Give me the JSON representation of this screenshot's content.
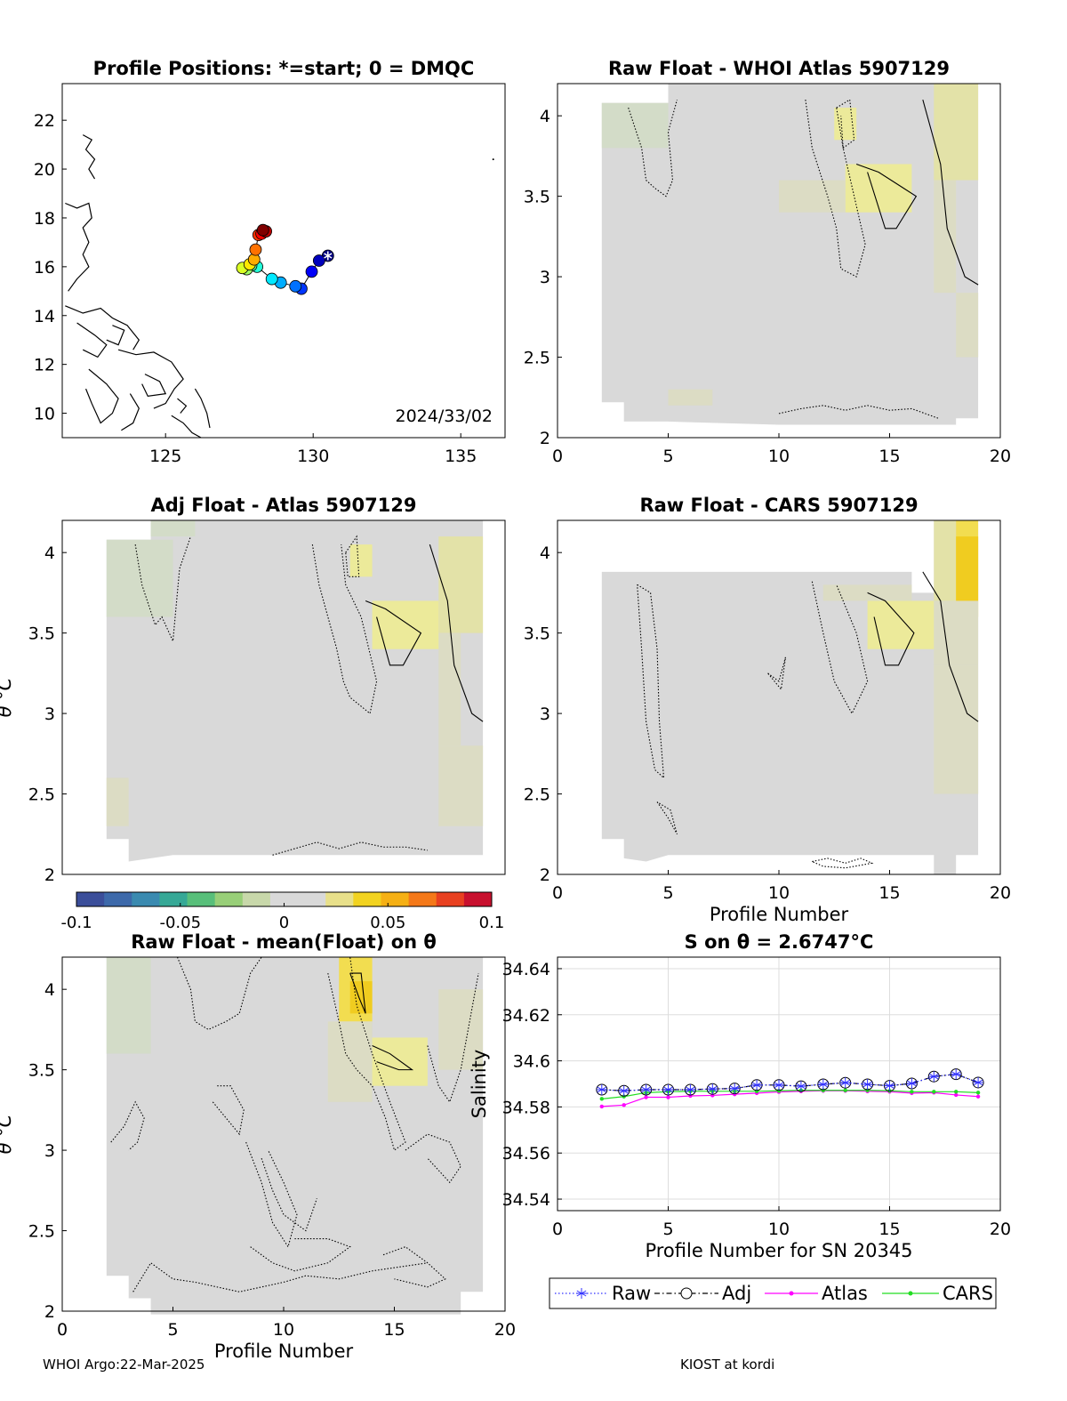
{
  "figure": {
    "footer_left": "WHOI Argo:22-Mar-2025",
    "footer_right": "KIOST at kordi"
  },
  "colors": {
    "raw": "#3030ff",
    "adj": "#000000",
    "atlas": "#ff00ff",
    "cars": "#22dd22",
    "background_field": "#d9d9d9",
    "grid": "#dddddd"
  },
  "chart_data": [
    {
      "id": "map",
      "type": "scatter",
      "title": "Profile Positions: *=start; 0 = DMQC",
      "annotation": "2024/33/02",
      "xlim": [
        121.5,
        136.5
      ],
      "ylim": [
        9,
        23.5
      ],
      "xticks": [
        "125",
        "130",
        "135"
      ],
      "yticks": [
        "10",
        "12",
        "14",
        "16",
        "18",
        "20",
        "22"
      ],
      "positions": [
        {
          "lon": 130.5,
          "lat": 16.45
        },
        {
          "lon": 130.2,
          "lat": 16.25
        },
        {
          "lon": 129.95,
          "lat": 15.8
        },
        {
          "lon": 129.6,
          "lat": 15.1
        },
        {
          "lon": 129.4,
          "lat": 15.2
        },
        {
          "lon": 128.9,
          "lat": 15.35
        },
        {
          "lon": 128.6,
          "lat": 15.5
        },
        {
          "lon": 128.1,
          "lat": 16.0
        },
        {
          "lon": 127.9,
          "lat": 16.05
        },
        {
          "lon": 127.75,
          "lat": 15.9
        },
        {
          "lon": 127.6,
          "lat": 15.95
        },
        {
          "lon": 127.85,
          "lat": 16.1
        },
        {
          "lon": 128.0,
          "lat": 16.3
        },
        {
          "lon": 128.05,
          "lat": 16.7
        },
        {
          "lon": 128.15,
          "lat": 17.3
        },
        {
          "lon": 128.25,
          "lat": 17.35
        },
        {
          "lon": 128.4,
          "lat": 17.45
        },
        {
          "lon": 128.3,
          "lat": 17.5
        }
      ]
    },
    {
      "id": "raw_whoi",
      "type": "heatmap",
      "title": "Raw Float - WHOI Atlas  5907129",
      "xlim": [
        0,
        20
      ],
      "ylim": [
        2,
        4.2
      ],
      "xticks": [
        "0",
        "5",
        "10",
        "15",
        "20"
      ],
      "yticks": [
        "2",
        "2.5",
        "3",
        "3.5",
        "4"
      ],
      "xlabel": "",
      "ylabel": ""
    },
    {
      "id": "adj_atlas",
      "type": "heatmap",
      "title": "Adj Float - Atlas  5907129",
      "xlim": [
        0,
        20
      ],
      "ylim": [
        2,
        4.2
      ],
      "xticks": [],
      "yticks": [
        "2",
        "2.5",
        "3",
        "3.5",
        "4"
      ],
      "xlabel": "",
      "ylabel": "θ °C"
    },
    {
      "id": "raw_cars",
      "type": "heatmap",
      "title": "Raw Float - CARS  5907129",
      "xlim": [
        0,
        20
      ],
      "ylim": [
        2,
        4.2
      ],
      "xticks": [
        "0",
        "5",
        "10",
        "15",
        "20"
      ],
      "yticks": [
        "2",
        "2.5",
        "3",
        "3.5",
        "4"
      ],
      "xlabel": "Profile Number",
      "ylabel": ""
    },
    {
      "id": "colorbar",
      "type": "colorbar",
      "range": [
        -0.1,
        0.1
      ],
      "ticks": [
        "-0.1",
        "-0.05",
        "0",
        "0.05",
        "0.1"
      ]
    },
    {
      "id": "raw_mean",
      "type": "heatmap",
      "title": "Raw Float - mean(Float) on θ",
      "xlim": [
        0,
        20
      ],
      "ylim": [
        2,
        4.2
      ],
      "xticks": [
        "0",
        "5",
        "10",
        "15",
        "20"
      ],
      "yticks": [
        "2",
        "2.5",
        "3",
        "3.5",
        "4"
      ],
      "xlabel": "Profile Number",
      "ylabel": "θ °C"
    },
    {
      "id": "salinity",
      "type": "line",
      "title": "S on θ = 2.6747°C",
      "xlabel": "Profile Number for SN 20345",
      "ylabel": "Salinity",
      "xlim": [
        0,
        20
      ],
      "ylim": [
        34.535,
        34.645
      ],
      "xticks": [
        "0",
        "5",
        "10",
        "15",
        "20"
      ],
      "yticks": [
        "34.54",
        "34.56",
        "34.58",
        "34.6",
        "34.62",
        "34.64"
      ],
      "grid": true,
      "legend": "bottom",
      "x": [
        2,
        3,
        4,
        5,
        6,
        7,
        8,
        9,
        10,
        11,
        12,
        13,
        14,
        15,
        16,
        17,
        18,
        19
      ],
      "series": [
        {
          "name": "Raw",
          "values": [
            34.5875,
            34.587,
            34.5875,
            34.5875,
            34.5875,
            34.5878,
            34.588,
            34.5895,
            34.5895,
            34.589,
            34.5898,
            34.5905,
            34.5898,
            34.5892,
            34.5902,
            34.5932,
            34.5942,
            34.5906
          ]
        },
        {
          "name": "Adj",
          "values": [
            34.5875,
            34.587,
            34.5875,
            34.5875,
            34.5875,
            34.5878,
            34.588,
            34.5895,
            34.5895,
            34.589,
            34.5898,
            34.5905,
            34.5898,
            34.5892,
            34.5902,
            34.5932,
            34.5942,
            34.5906
          ]
        },
        {
          "name": "Atlas",
          "values": [
            34.5802,
            34.5808,
            34.5842,
            34.5842,
            34.5848,
            34.585,
            34.5855,
            34.586,
            34.5865,
            34.5868,
            34.587,
            34.587,
            34.5868,
            34.5866,
            34.586,
            34.5862,
            34.5852,
            34.5845
          ]
        },
        {
          "name": "CARS",
          "values": [
            34.5835,
            34.5845,
            34.5862,
            34.5866,
            34.5868,
            34.5868,
            34.5868,
            34.5868,
            34.587,
            34.5872,
            34.5872,
            34.5872,
            34.5872,
            34.587,
            34.5866,
            34.5866,
            34.5866,
            34.5862
          ]
        }
      ]
    }
  ]
}
